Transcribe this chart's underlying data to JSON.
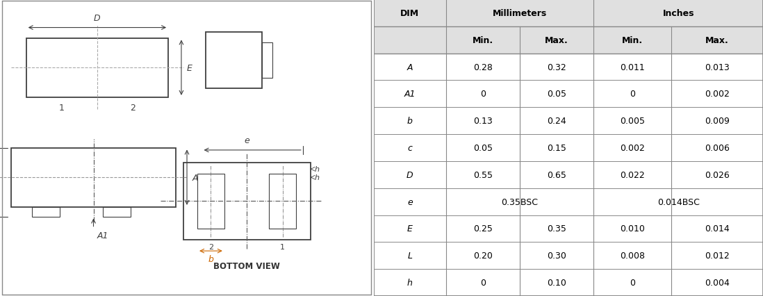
{
  "table": {
    "rows": [
      [
        "A",
        "0.28",
        "0.32",
        "0.011",
        "0.013"
      ],
      [
        "A1",
        "0",
        "0.05",
        "0",
        "0.002"
      ],
      [
        "b",
        "0.13",
        "0.24",
        "0.005",
        "0.009"
      ],
      [
        "c",
        "0.05",
        "0.15",
        "0.002",
        "0.006"
      ],
      [
        "D",
        "0.55",
        "0.65",
        "0.022",
        "0.026"
      ],
      [
        "e",
        "0.35BSC",
        "",
        "0.014BSC",
        ""
      ],
      [
        "E",
        "0.25",
        "0.35",
        "0.010",
        "0.014"
      ],
      [
        "L",
        "0.20",
        "0.30",
        "0.008",
        "0.012"
      ],
      [
        "h",
        "0",
        "0.10",
        "0",
        "0.004"
      ]
    ],
    "header_bg": "#e0e0e0",
    "border_color": "#888888",
    "text_color": "#000000",
    "font_size": 9
  },
  "diagram": {
    "line_color": "#404040",
    "dash_color": "#aaaaaa",
    "dim_color": "#404040",
    "b_label_color": "#cc6600"
  }
}
